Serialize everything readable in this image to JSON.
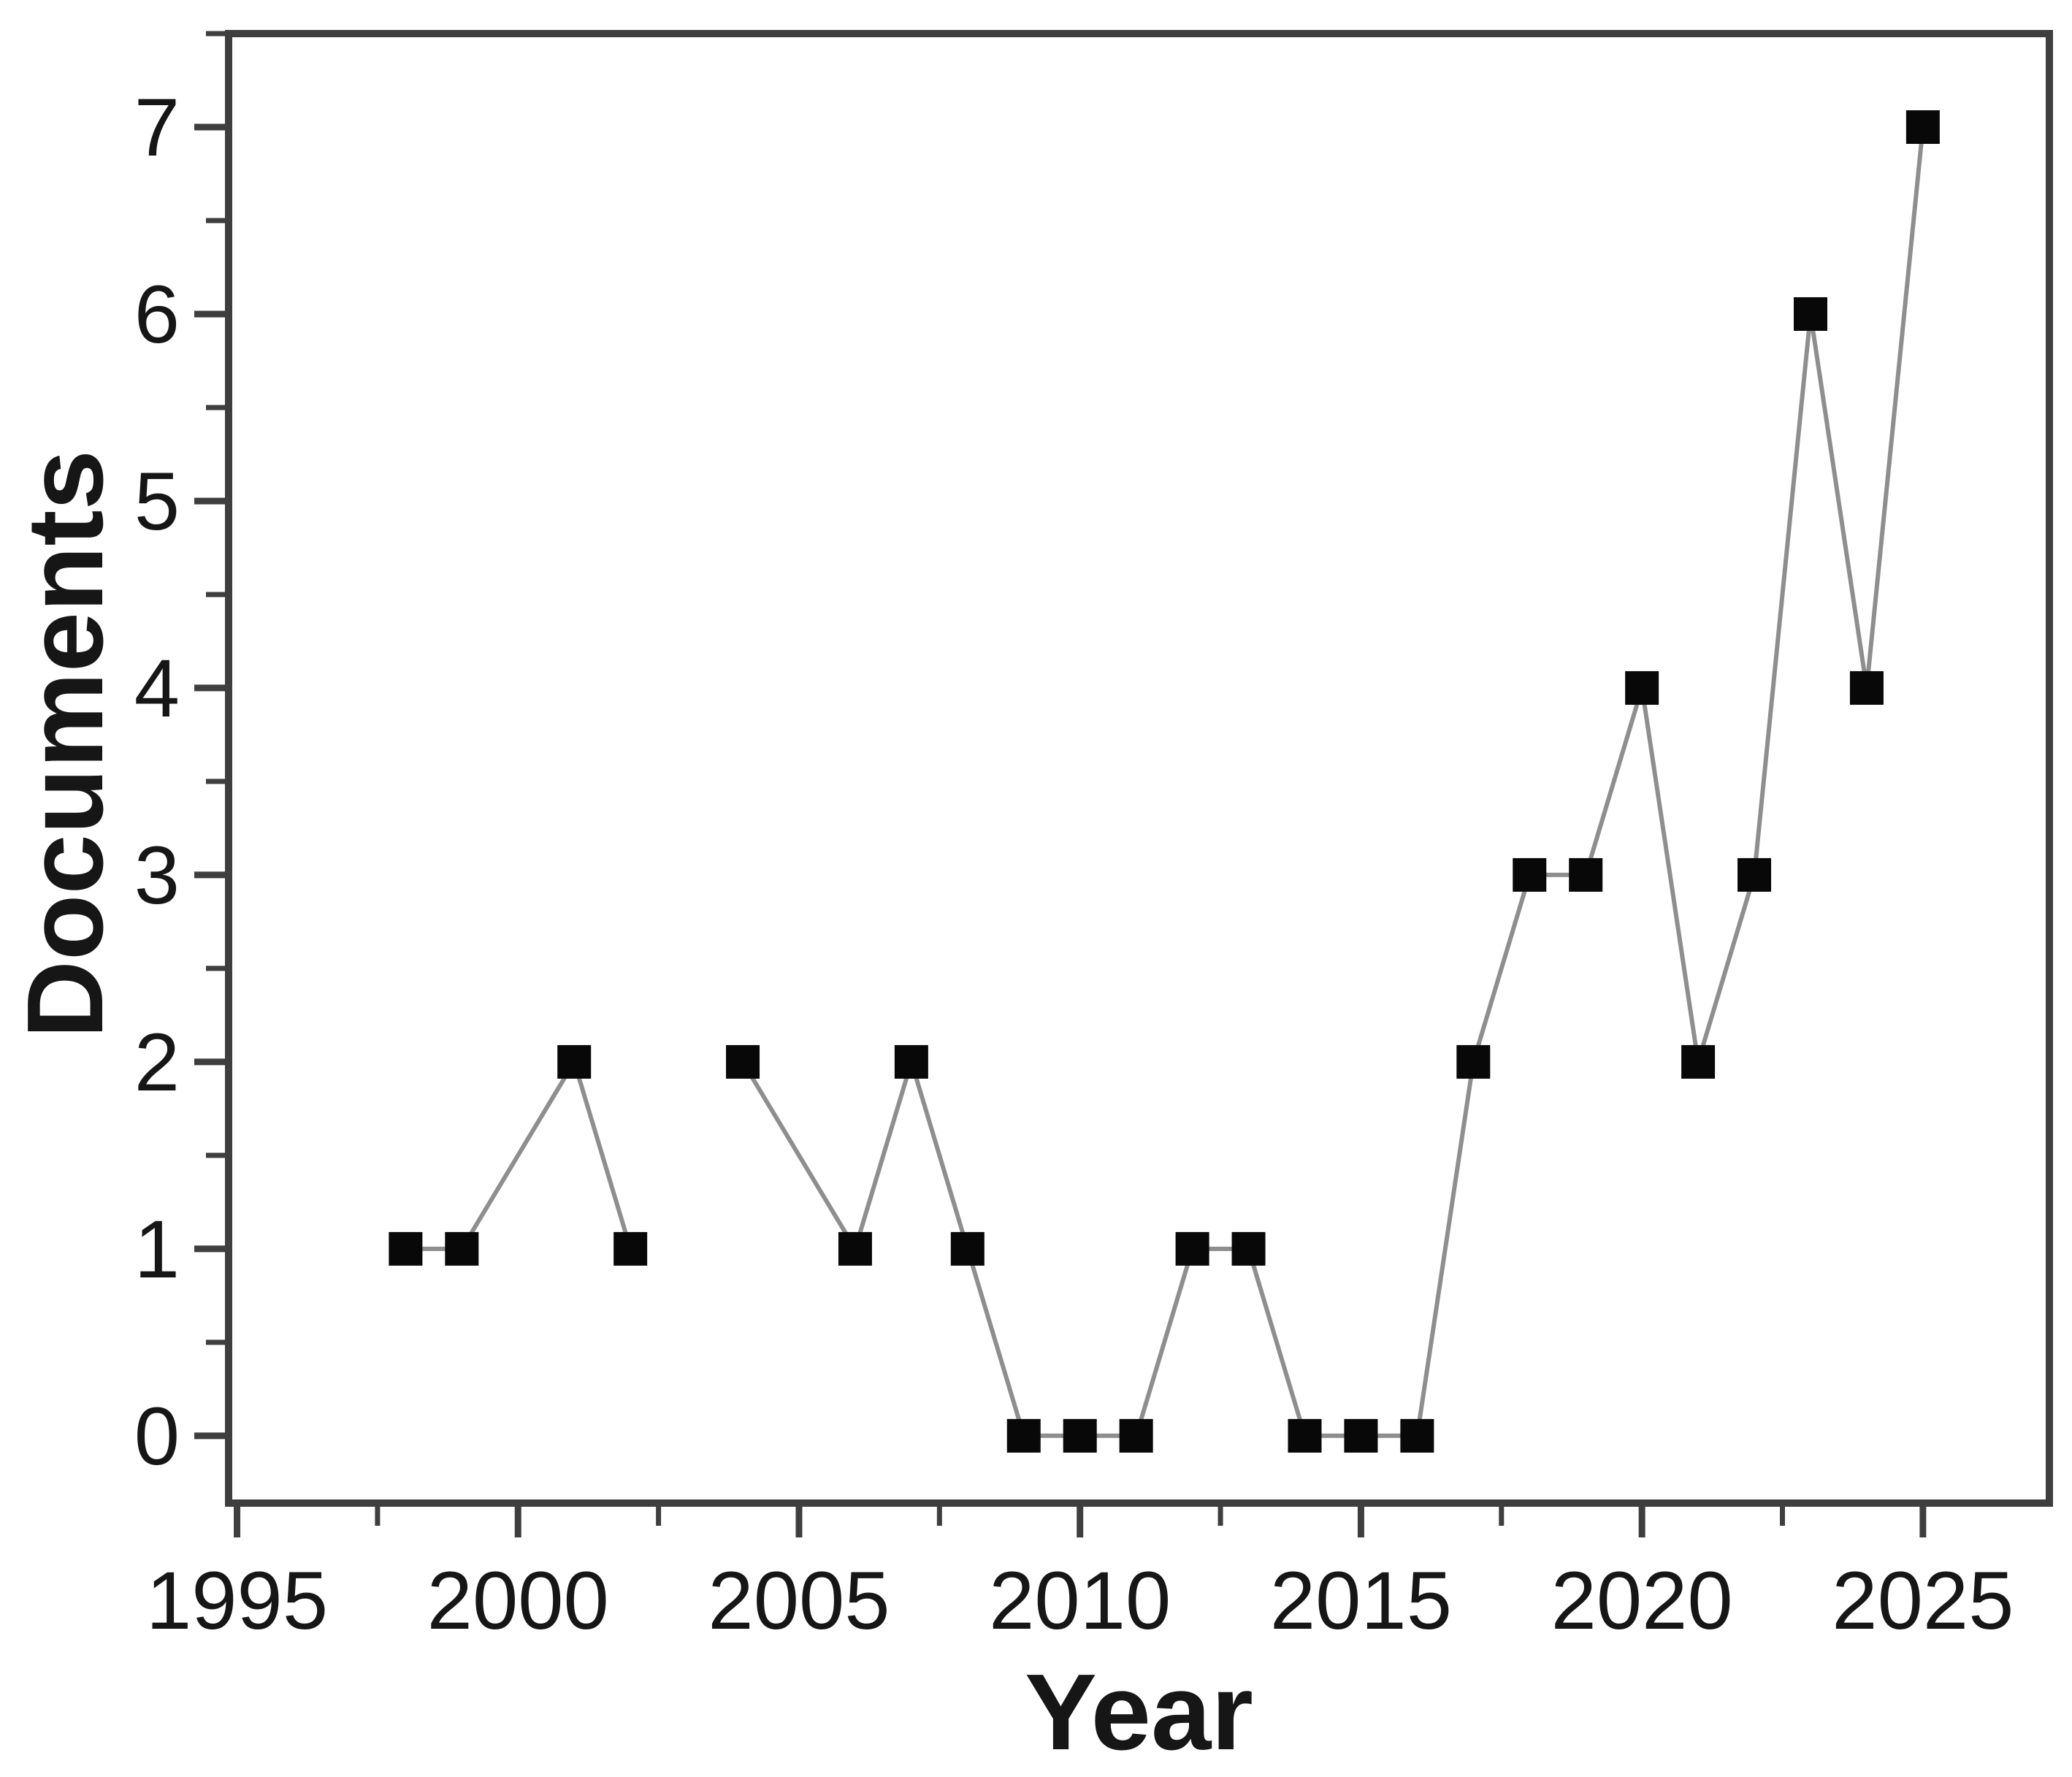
{
  "chart_data": {
    "type": "line",
    "title": "",
    "xlabel": "Year",
    "ylabel": "Documents",
    "series": [
      {
        "name": "Documents",
        "points": [
          {
            "year": 1998,
            "documents": 1
          },
          {
            "year": 1999,
            "documents": 1
          },
          {
            "year": 2001,
            "documents": 2
          },
          {
            "year": 2002,
            "documents": 1
          },
          {
            "year": 2004,
            "documents": 2
          },
          {
            "year": 2006,
            "documents": 1
          },
          {
            "year": 2007,
            "documents": 2
          },
          {
            "year": 2008,
            "documents": 1
          },
          {
            "year": 2009,
            "documents": 0
          },
          {
            "year": 2010,
            "documents": 0
          },
          {
            "year": 2011,
            "documents": 0
          },
          {
            "year": 2012,
            "documents": 1
          },
          {
            "year": 2013,
            "documents": 1
          },
          {
            "year": 2014,
            "documents": 0
          },
          {
            "year": 2015,
            "documents": 0
          },
          {
            "year": 2016,
            "documents": 0
          },
          {
            "year": 2017,
            "documents": 2
          },
          {
            "year": 2018,
            "documents": 3
          },
          {
            "year": 2019,
            "documents": 3
          },
          {
            "year": 2020,
            "documents": 4
          },
          {
            "year": 2021,
            "documents": 2
          },
          {
            "year": 2022,
            "documents": 3
          },
          {
            "year": 2023,
            "documents": 6
          },
          {
            "year": 2024,
            "documents": 4
          },
          {
            "year": 2025,
            "documents": 7
          }
        ],
        "line_gap_after_years": [
          2002
        ]
      }
    ],
    "x_tick_labels": [
      "1995",
      "2000",
      "2005",
      "2010",
      "2015",
      "2020",
      "2025"
    ],
    "x_ticks_major": [
      1995,
      2000,
      2005,
      2010,
      2015,
      2020,
      2025
    ],
    "x_minor_tick_offset": 2.5,
    "y_tick_labels": [
      "0",
      "1",
      "2",
      "3",
      "4",
      "5",
      "6",
      "7"
    ],
    "y_ticks_major": [
      0,
      1,
      2,
      3,
      4,
      5,
      6,
      7
    ],
    "y_minor_tick_offset": 0.5,
    "xlim": [
      1994.85,
      2027.25
    ],
    "ylim": [
      -0.36,
      7.5
    ],
    "grid": false,
    "legend": false,
    "marker": "square",
    "colors": {
      "background": "#ffffff",
      "axis": "#3e3e3e",
      "line": "#8e8e8e",
      "marker": "#080808",
      "text": "#161616"
    }
  }
}
